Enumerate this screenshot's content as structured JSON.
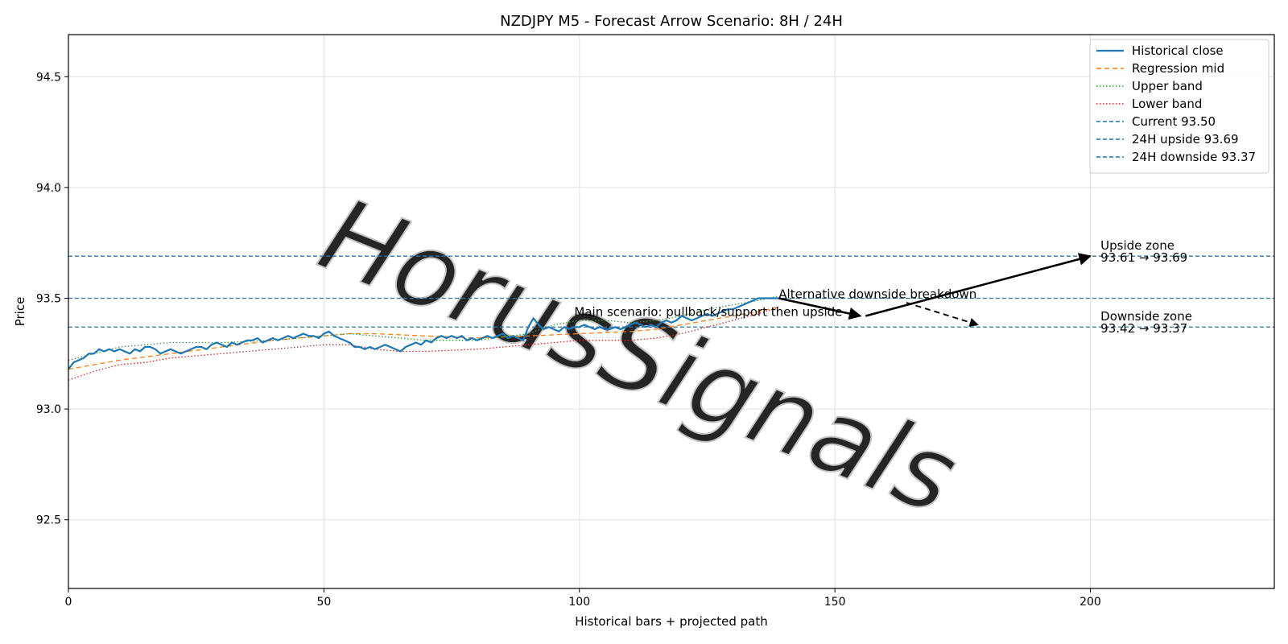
{
  "chart_data": {
    "type": "line",
    "title": "NZDJPY M5 - Forecast Arrow Scenario: 8H / 24H",
    "xlabel": "Historical bars + projected path",
    "ylabel": "Price",
    "xlim": [
      0,
      236
    ],
    "ylim": [
      92.19,
      94.69
    ],
    "xticks": [
      0,
      50,
      100,
      150,
      200
    ],
    "yticks": [
      92.5,
      93.0,
      93.5,
      94.0,
      94.5
    ],
    "xtick_labels": [
      "0",
      "50",
      "100",
      "150",
      "200"
    ],
    "ytick_labels": [
      "92.5",
      "93.0",
      "93.5",
      "94.0",
      "94.5"
    ],
    "grid": true,
    "legend_position": "top-right",
    "series": [
      {
        "name": "Historical close",
        "style": "solid",
        "color": "#1f77b4",
        "x": [
          0,
          1,
          2,
          3,
          4,
          5,
          6,
          7,
          8,
          9,
          10,
          11,
          12,
          13,
          14,
          15,
          16,
          17,
          18,
          19,
          20,
          21,
          22,
          23,
          24,
          25,
          26,
          27,
          28,
          29,
          30,
          31,
          32,
          33,
          34,
          35,
          36,
          37,
          38,
          39,
          40,
          41,
          42,
          43,
          44,
          45,
          46,
          47,
          48,
          49,
          50,
          51,
          52,
          53,
          54,
          55,
          56,
          57,
          58,
          59,
          60,
          61,
          62,
          63,
          64,
          65,
          66,
          67,
          68,
          69,
          70,
          71,
          72,
          73,
          74,
          75,
          76,
          77,
          78,
          79,
          80,
          81,
          82,
          83,
          84,
          85,
          86,
          87,
          88,
          89,
          90,
          91,
          92,
          93,
          94,
          95,
          96,
          97,
          98,
          99,
          100,
          101,
          102,
          103,
          104,
          105,
          106,
          107,
          108,
          109,
          110,
          111,
          112,
          113,
          114,
          115,
          116,
          117,
          118,
          119,
          120,
          121,
          122,
          123,
          124,
          125,
          126,
          127,
          128,
          129,
          130,
          131,
          132,
          133,
          134,
          135,
          136,
          137,
          138,
          139
        ],
        "y": [
          93.18,
          93.21,
          93.22,
          93.23,
          93.25,
          93.25,
          93.27,
          93.26,
          93.27,
          93.26,
          93.27,
          93.26,
          93.25,
          93.27,
          93.26,
          93.28,
          93.28,
          93.27,
          93.25,
          93.26,
          93.27,
          93.26,
          93.25,
          93.26,
          93.27,
          93.28,
          93.28,
          93.27,
          93.29,
          93.3,
          93.29,
          93.28,
          93.3,
          93.29,
          93.3,
          93.31,
          93.31,
          93.32,
          93.3,
          93.31,
          93.32,
          93.31,
          93.32,
          93.33,
          93.32,
          93.33,
          93.34,
          93.33,
          93.33,
          93.32,
          93.34,
          93.35,
          93.33,
          93.32,
          93.31,
          93.3,
          93.28,
          93.28,
          93.27,
          93.28,
          93.27,
          93.28,
          93.29,
          93.28,
          93.27,
          93.26,
          93.28,
          93.29,
          93.3,
          93.29,
          93.31,
          93.3,
          93.32,
          93.33,
          93.32,
          93.33,
          93.32,
          93.33,
          93.31,
          93.32,
          93.31,
          93.32,
          93.33,
          93.32,
          93.33,
          93.34,
          93.32,
          93.33,
          93.32,
          93.31,
          93.37,
          93.41,
          93.38,
          93.36,
          93.37,
          93.36,
          93.35,
          93.37,
          93.36,
          93.37,
          93.37,
          93.38,
          93.37,
          93.36,
          93.37,
          93.36,
          93.36,
          93.37,
          93.36,
          93.37,
          93.38,
          93.39,
          93.38,
          93.37,
          93.38,
          93.37,
          93.39,
          93.4,
          93.39,
          93.4,
          93.42,
          93.41,
          93.4,
          93.41,
          93.42,
          93.43,
          93.42,
          93.43,
          93.44,
          93.45,
          93.45,
          93.46,
          93.47,
          93.48,
          93.49,
          93.5,
          93.5,
          93.5,
          93.5,
          93.5
        ]
      },
      {
        "name": "Regression mid",
        "style": "dashed",
        "color": "#ff7f0e",
        "x": [
          0,
          10,
          20,
          30,
          40,
          50,
          55,
          60,
          70,
          80,
          90,
          100,
          110,
          115,
          120,
          125,
          130,
          135,
          139
        ],
        "y": [
          93.18,
          93.22,
          93.25,
          93.28,
          93.31,
          93.33,
          93.34,
          93.34,
          93.33,
          93.32,
          93.33,
          93.34,
          93.35,
          93.36,
          93.38,
          93.4,
          93.42,
          93.44,
          93.46
        ]
      },
      {
        "name": "Upper band",
        "style": "dotted",
        "color": "#2ca02c",
        "x": [
          0,
          5,
          10,
          15,
          20,
          25,
          30,
          40,
          50,
          55,
          60,
          70,
          80,
          90,
          95,
          100,
          105,
          110,
          115,
          120,
          125,
          130,
          135,
          139
        ],
        "y": [
          93.22,
          93.25,
          93.28,
          93.29,
          93.3,
          93.3,
          93.3,
          93.31,
          93.33,
          93.34,
          93.33,
          93.31,
          93.31,
          93.34,
          93.38,
          93.4,
          93.4,
          93.39,
          93.4,
          93.42,
          93.45,
          93.47,
          93.49,
          93.51
        ]
      },
      {
        "name": "Lower band",
        "style": "dotted",
        "color": "#d62728",
        "x": [
          0,
          5,
          10,
          15,
          20,
          25,
          30,
          40,
          50,
          55,
          60,
          65,
          70,
          80,
          90,
          100,
          105,
          110,
          115,
          120,
          125,
          130,
          135,
          139
        ],
        "y": [
          93.13,
          93.17,
          93.2,
          93.21,
          93.23,
          93.24,
          93.25,
          93.27,
          93.29,
          93.29,
          93.27,
          93.26,
          93.26,
          93.27,
          93.29,
          93.31,
          93.31,
          93.31,
          93.32,
          93.34,
          93.37,
          93.4,
          93.43,
          93.46
        ]
      },
      {
        "name": "Current 93.50",
        "style": "dashed",
        "color": "#1f77b4",
        "hline": 93.5
      },
      {
        "name": "24H upside 93.69",
        "style": "dashed",
        "color": "#1f77b4",
        "hline": 93.69
      },
      {
        "name": "24H downside 93.37",
        "style": "dashed",
        "color": "#1f77b4",
        "hline": 93.37
      }
    ],
    "arrows": [
      {
        "from": [
          139,
          93.5
        ],
        "to": [
          155,
          93.42
        ],
        "style": "solid"
      },
      {
        "from": [
          156,
          93.42
        ],
        "to": [
          200,
          93.69
        ],
        "style": "solid"
      },
      {
        "from": [
          164,
          93.48
        ],
        "to": [
          178,
          93.38
        ],
        "style": "dashed"
      }
    ],
    "annotations": [
      {
        "text": "Main scenario: pullback/support then upside",
        "x": 99,
        "y": 93.42
      },
      {
        "text": "Alternative downside breakdown",
        "x": 139,
        "y": 93.5
      },
      {
        "text": "Upside zone",
        "x": 202,
        "y": 93.72
      },
      {
        "text": "93.61 → 93.69",
        "x": 202,
        "y": 93.665
      },
      {
        "text": "Downside zone",
        "x": 202,
        "y": 93.4
      },
      {
        "text": "93.42 → 93.37",
        "x": 202,
        "y": 93.345
      }
    ],
    "watermark": "HorusSignals"
  }
}
